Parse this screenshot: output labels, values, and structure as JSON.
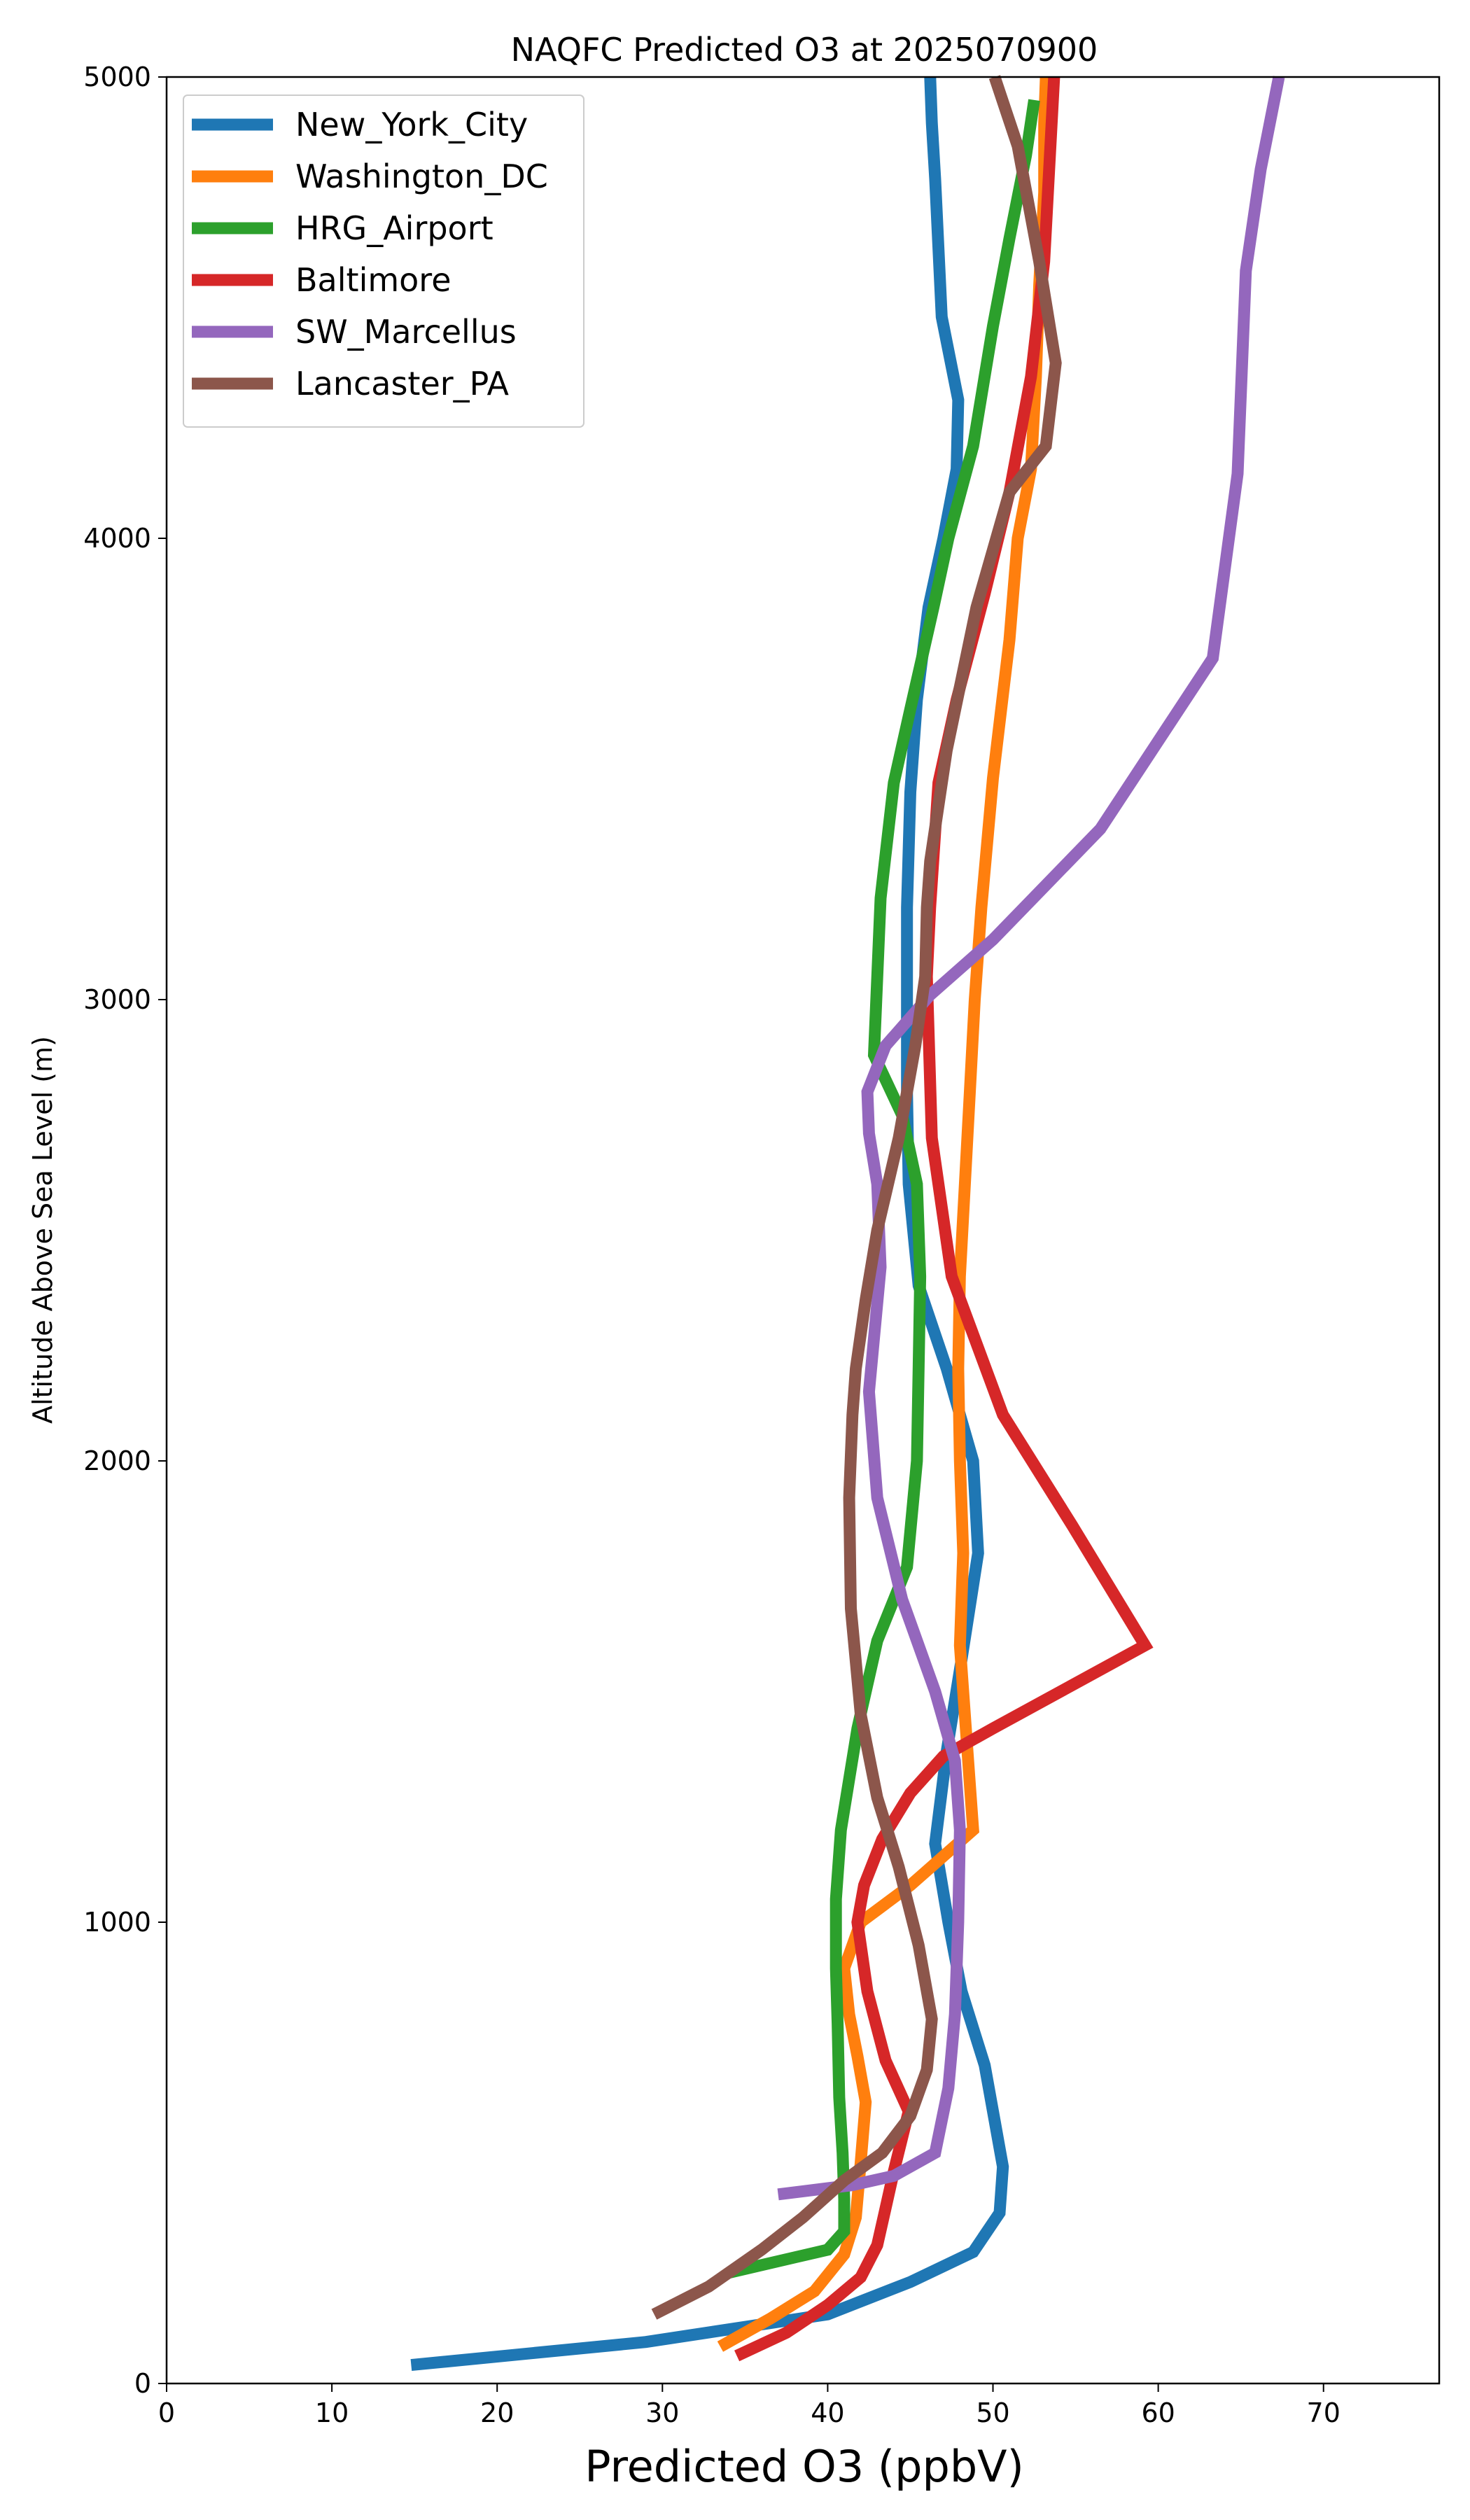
{
  "chart_data": {
    "type": "line",
    "title": "NAQFC Predicted O3 at 2025070900",
    "xlabel": "Predicted O3 (ppbV)",
    "ylabel": "Altitude Above Sea Level (m)",
    "xlim": [
      0,
      77
    ],
    "ylim": [
      0,
      5000
    ],
    "xticks": [
      0,
      10,
      20,
      30,
      40,
      50,
      60,
      70
    ],
    "xtick_labels": [
      "0",
      "10",
      "20",
      "30",
      "40",
      "50",
      "60",
      "70"
    ],
    "yticks": [
      0,
      1000,
      2000,
      3000,
      4000,
      5000
    ],
    "ytick_labels": [
      "0",
      "1000",
      "2000",
      "3000",
      "4000",
      "5000"
    ],
    "grid": false,
    "legend_position": "top-left",
    "series": [
      {
        "name": "New_York_City",
        "color": "#1f77b4",
        "x": [
          14.8,
          29.0,
          40.0,
          45.0,
          48.8,
          50.4,
          50.6,
          50.1,
          49.5,
          48.1,
          47.3,
          46.5,
          47.2,
          48.1,
          49.1,
          48.8,
          47.2,
          45.5,
          44.9,
          44.8,
          44.8,
          44.8,
          45.0,
          45.4,
          46.1,
          47.0,
          47.8,
          47.9,
          46.9,
          46.5,
          46.3,
          46.2
        ],
        "y": [
          40,
          90,
          150,
          220,
          285,
          370,
          470,
          570,
          690,
          850,
          1000,
          1170,
          1370,
          1570,
          1800,
          2000,
          2200,
          2380,
          2600,
          2800,
          3000,
          3200,
          3450,
          3650,
          3850,
          4000,
          4150,
          4300,
          4480,
          4780,
          4900,
          5000
        ]
      },
      {
        "name": "Washington_DC",
        "color": "#ff7f0e",
        "x": [
          33.5,
          36.5,
          39.2,
          41.0,
          41.7,
          42.0,
          42.3,
          41.8,
          41.3,
          41.0,
          42.0,
          45.0,
          48.8,
          48.4,
          48.0,
          48.2,
          48.0,
          47.9,
          48.0,
          48.3,
          48.6,
          48.9,
          49.3,
          50.0,
          51.0,
          51.5,
          52.3,
          52.6,
          52.8,
          53.1,
          53.1,
          53.2
        ],
        "y": [
          80,
          140,
          200,
          280,
          360,
          480,
          610,
          710,
          800,
          900,
          1000,
          1080,
          1200,
          1400,
          1600,
          1800,
          2000,
          2200,
          2400,
          2600,
          2800,
          3000,
          3200,
          3480,
          3780,
          4000,
          4150,
          4350,
          4550,
          4750,
          4900,
          5000
        ]
      },
      {
        "name": "HRG_Airport",
        "color": "#2ca02c",
        "x": [
          34.0,
          40.0,
          41.0,
          41.0,
          40.9,
          40.7,
          40.6,
          40.5,
          40.5,
          40.8,
          41.8,
          43.0,
          44.8,
          45.4,
          45.5,
          45.6,
          45.4,
          44.5,
          42.8,
          43.2,
          44.0,
          45.0,
          46.4,
          47.3,
          48.8,
          50.0,
          51.0,
          52.0,
          52.5
        ],
        "y": [
          240,
          290,
          330,
          400,
          500,
          620,
          780,
          900,
          1050,
          1200,
          1420,
          1610,
          1770,
          2000,
          2200,
          2400,
          2600,
          2750,
          2880,
          3220,
          3470,
          3630,
          3850,
          4000,
          4200,
          4460,
          4650,
          4830,
          4950
        ]
      },
      {
        "name": "Baltimore",
        "color": "#d62728",
        "x": [
          34.5,
          37.5,
          40.0,
          42.0,
          43.0,
          43.5,
          44.0,
          44.9,
          43.5,
          42.4,
          41.8,
          42.2,
          43.3,
          45.0,
          47.0,
          50.0,
          59.2,
          54.8,
          50.6,
          47.5,
          46.3,
          46.0,
          46.2,
          46.7,
          47.8,
          49.5,
          51.0,
          52.3,
          53.1,
          53.4,
          53.7
        ],
        "y": [
          60,
          110,
          170,
          230,
          300,
          380,
          460,
          590,
          700,
          850,
          1000,
          1080,
          1180,
          1280,
          1360,
          1420,
          1600,
          1860,
          2100,
          2400,
          2700,
          3050,
          3200,
          3470,
          3650,
          3880,
          4100,
          4350,
          4600,
          4800,
          5000
        ]
      },
      {
        "name": "SW_Marcellus",
        "color": "#9467bd",
        "x": [
          37.0,
          41.5,
          44.0,
          46.5,
          47.3,
          47.7,
          47.9,
          48.0,
          47.7,
          46.5,
          44.5,
          43.0,
          42.5,
          43.2,
          43.0,
          42.5,
          42.4,
          43.5,
          46.2,
          50.0,
          56.5,
          63.3,
          64.8,
          65.3,
          66.2,
          67.3
        ],
        "y": [
          410,
          430,
          450,
          500,
          640,
          800,
          1000,
          1200,
          1350,
          1500,
          1700,
          1920,
          2150,
          2420,
          2600,
          2710,
          2800,
          2900,
          3010,
          3130,
          3370,
          3740,
          4140,
          4580,
          4800,
          5000
        ]
      },
      {
        "name": "Lancaster_PA",
        "color": "#8c564b",
        "x": [
          29.5,
          32.8,
          36.0,
          38.5,
          41.0,
          43.3,
          45.0,
          46.0,
          46.3,
          45.5,
          44.3,
          43.0,
          42.0,
          41.4,
          41.3,
          41.5,
          41.7,
          42.3,
          43.0,
          44.3,
          45.3,
          45.9,
          46.0,
          46.2,
          47.2,
          49.0,
          51.0,
          53.2,
          53.8,
          52.8,
          51.5,
          50.1
        ],
        "y": [
          150,
          210,
          290,
          360,
          440,
          500,
          580,
          680,
          790,
          950,
          1120,
          1270,
          1450,
          1680,
          1920,
          2100,
          2200,
          2350,
          2500,
          2700,
          2900,
          3050,
          3200,
          3300,
          3540,
          3850,
          4100,
          4200,
          4380,
          4600,
          4850,
          5000
        ]
      }
    ]
  }
}
